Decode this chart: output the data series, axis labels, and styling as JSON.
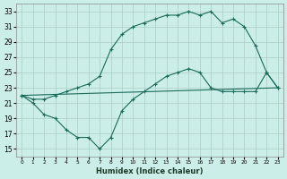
{
  "xlabel": "Humidex (Indice chaleur)",
  "bg_color": "#cceee8",
  "grid_color": "#aaccc4",
  "line_color": "#1a6a5a",
  "xlim": [
    -0.5,
    23.5
  ],
  "ylim": [
    14,
    34
  ],
  "yticks": [
    15,
    17,
    19,
    21,
    23,
    25,
    27,
    29,
    31,
    33
  ],
  "xticks": [
    0,
    1,
    2,
    3,
    4,
    5,
    6,
    7,
    8,
    9,
    10,
    11,
    12,
    13,
    14,
    15,
    16,
    17,
    18,
    19,
    20,
    21,
    22,
    23
  ],
  "line1_x": [
    0,
    1,
    2,
    3,
    4,
    5,
    6,
    7,
    8,
    9,
    10,
    11,
    12,
    13,
    14,
    15,
    16,
    17,
    18,
    19,
    20,
    21,
    22,
    23
  ],
  "line1_y": [
    22.0,
    21.0,
    19.5,
    19.0,
    17.5,
    16.5,
    16.5,
    15.0,
    16.5,
    20.0,
    21.5,
    22.5,
    23.5,
    24.5,
    25.0,
    25.5,
    25.0,
    23.0,
    22.5,
    22.5,
    22.5,
    22.5,
    25.0,
    23.0
  ],
  "line2_x": [
    0,
    23
  ],
  "line2_y": [
    22.0,
    23.0
  ],
  "line3_x": [
    0,
    1,
    2,
    3,
    4,
    5,
    6,
    7,
    8,
    9,
    10,
    11,
    12,
    13,
    14,
    15,
    16,
    17,
    18,
    19,
    20,
    21,
    22,
    23
  ],
  "line3_y": [
    22.0,
    21.5,
    21.5,
    22.0,
    22.5,
    23.0,
    23.5,
    24.5,
    28.0,
    30.0,
    31.0,
    31.5,
    32.0,
    32.5,
    32.5,
    33.0,
    32.5,
    33.0,
    31.5,
    32.0,
    31.0,
    28.5,
    25.0,
    23.0
  ]
}
